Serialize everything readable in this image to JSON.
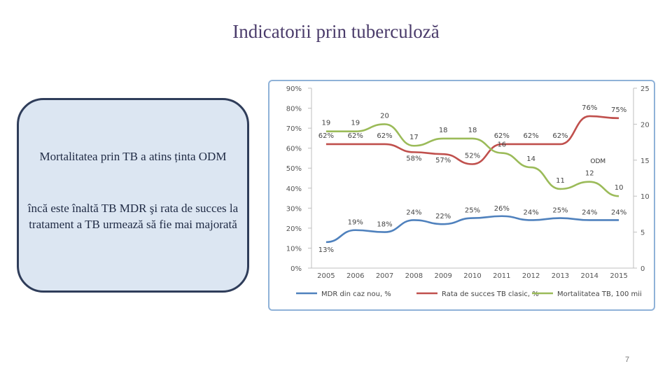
{
  "slide": {
    "title": "Indicatorii prin tuberculoză",
    "box_text_1": "Mortalitatea prin TB a atins ținta ODM",
    "box_text_2": "încă este înaltă TB MDR şi rata de succes la tratament a TB urmează să fie mai majorată",
    "page_number": "7"
  },
  "chart_data": {
    "type": "line",
    "categories": [
      "2005",
      "2006",
      "2007",
      "2008",
      "2009",
      "2010",
      "2011",
      "2012",
      "2013",
      "2014",
      "2015"
    ],
    "y_left": {
      "ticks": [
        "0%",
        "10%",
        "20%",
        "30%",
        "40%",
        "50%",
        "60%",
        "70%",
        "80%",
        "90%"
      ],
      "range": [
        0,
        90
      ]
    },
    "y_right": {
      "ticks": [
        "0",
        "5",
        "10",
        "15",
        "20",
        "25"
      ],
      "range": [
        0,
        25
      ]
    },
    "series": [
      {
        "name": "MDR din caz nou, %",
        "axis": "left",
        "color": "#4f81bd",
        "values": [
          13,
          19,
          18,
          24,
          22,
          25,
          26,
          24,
          25,
          24,
          24
        ],
        "labels": [
          "13%",
          "19%",
          "18%",
          "24%",
          "22%",
          "25%",
          "26%",
          "24%",
          "25%",
          "24%",
          "24%"
        ]
      },
      {
        "name": "Rata de succes TB clasic, %",
        "axis": "left",
        "color": "#c0504d",
        "values": [
          62,
          62,
          62,
          58,
          57,
          52,
          62,
          62,
          62,
          76,
          75
        ],
        "labels": [
          "62%",
          "62%",
          "62%",
          "58%",
          "57%",
          "52%",
          "62%",
          "62%",
          "62%",
          "76%",
          "75%"
        ]
      },
      {
        "name": "Mortalitatea TB, 100 mii",
        "axis": "right",
        "color": "#9bbb59",
        "values": [
          19,
          19,
          20,
          17,
          18,
          18,
          16,
          14,
          11,
          12,
          10
        ],
        "labels": [
          "19",
          "19",
          "20",
          "17",
          "18",
          "18",
          "16",
          "14",
          "11",
          "12",
          "10"
        ]
      }
    ],
    "annotation": "ODM",
    "legend_position": "bottom"
  }
}
